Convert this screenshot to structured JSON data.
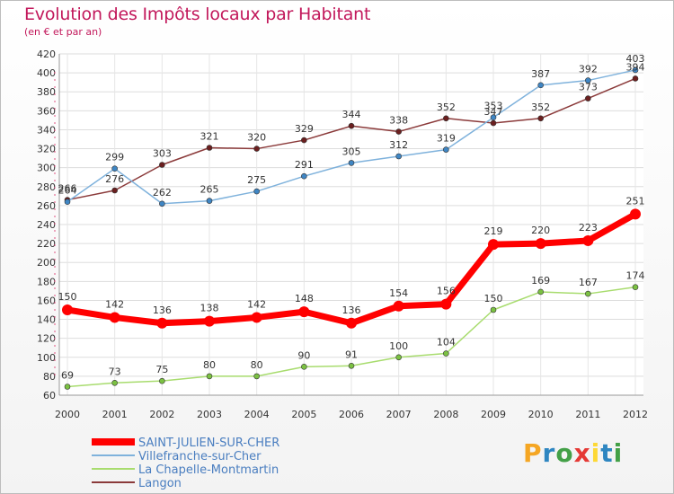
{
  "header": {
    "title": "Evolution des Impôts locaux par Habitant",
    "subtitle": "(en € et par an)"
  },
  "logo": {
    "letters": [
      "P",
      "r",
      "o",
      "x",
      "i",
      "t",
      "i"
    ],
    "colors": [
      "#f5a623",
      "#2e86c1",
      "#43a047",
      "#e53935",
      "#fdd835",
      "#2e86c1",
      "#43a047"
    ]
  },
  "chart_data": {
    "type": "line",
    "title": "Evolution des Impôts locaux par Habitant",
    "subtitle": "(en € et par an)",
    "xlabel": "",
    "ylabel": "",
    "x": [
      "2000",
      "2001",
      "2002",
      "2003",
      "2004",
      "2005",
      "2006",
      "2007",
      "2008",
      "2009",
      "2010",
      "2011",
      "2012"
    ],
    "ylim": [
      60,
      420
    ],
    "yticks": [
      60,
      80,
      100,
      120,
      140,
      160,
      180,
      200,
      220,
      240,
      260,
      280,
      300,
      320,
      340,
      360,
      380,
      400,
      420
    ],
    "grid": true,
    "legend_position": "bottom-left",
    "series": [
      {
        "name": "SAINT-JULIEN-SUR-CHER",
        "color": "#ff0000",
        "marker": "#ff0000",
        "emphasis": true,
        "values": [
          150,
          142,
          136,
          138,
          142,
          148,
          136,
          154,
          156,
          219,
          220,
          223,
          251
        ]
      },
      {
        "name": "Villefranche-sur-Cher",
        "color": "#7fb2dc",
        "marker": "#3f86c4",
        "emphasis": false,
        "values": [
          264,
          299,
          262,
          265,
          275,
          291,
          305,
          312,
          319,
          353,
          387,
          392,
          403
        ]
      },
      {
        "name": "La Chapelle-Montmartin",
        "color": "#a8dc6e",
        "marker": "#7bc142",
        "emphasis": false,
        "values": [
          69,
          73,
          75,
          80,
          80,
          90,
          91,
          100,
          104,
          150,
          169,
          167,
          174
        ]
      },
      {
        "name": "Langon",
        "color": "#8b3a3a",
        "marker": "#6b1f1f",
        "emphasis": false,
        "values": [
          266,
          276,
          303,
          321,
          320,
          329,
          344,
          338,
          352,
          347,
          352,
          373,
          394
        ]
      }
    ]
  }
}
